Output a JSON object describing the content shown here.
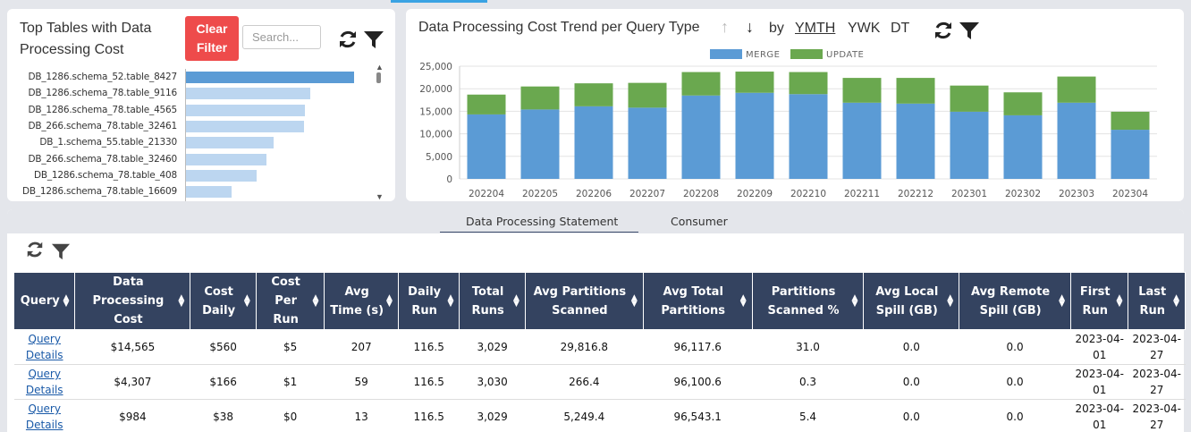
{
  "top_tables": {
    "title": "Top Tables with Data Processing Cost",
    "clear_filter_label": "Clear Filter",
    "search_placeholder": "Search...",
    "rows": [
      {
        "label": "DB_1286.schema_52.table_8427",
        "value": 100,
        "selected": true
      },
      {
        "label": "DB_1286.schema_78.table_9116",
        "value": 74
      },
      {
        "label": "DB_1286.schema_78.table_4565",
        "value": 71
      },
      {
        "label": "DB_266.schema_78.table_32461",
        "value": 70
      },
      {
        "label": "DB_1.schema_55.table_21330",
        "value": 52
      },
      {
        "label": "DB_266.schema_78.table_32460",
        "value": 48
      },
      {
        "label": "DB_1286.schema_78.table_408",
        "value": 42
      },
      {
        "label": "DB_1286.schema_78.table_16609",
        "value": 27
      }
    ]
  },
  "trend": {
    "title": "Data Processing Cost Trend per Query Type",
    "by_label": "by",
    "granularity": [
      "YMTH",
      "YWK",
      "DT"
    ],
    "active_granularity": "YMTH"
  },
  "chart_data": {
    "type": "bar",
    "stacked": true,
    "categories": [
      "202204",
      "202205",
      "202206",
      "202207",
      "202208",
      "202209",
      "202210",
      "202211",
      "202212",
      "202301",
      "202302",
      "202303",
      "202304"
    ],
    "series": [
      {
        "name": "MERGE",
        "color": "#5b9bd5",
        "values": [
          14300,
          15400,
          16100,
          15800,
          18500,
          19100,
          18800,
          16900,
          16700,
          14900,
          14100,
          16900,
          10900
        ]
      },
      {
        "name": "UPDATE",
        "color": "#6aa84f",
        "values": [
          4400,
          5100,
          5100,
          5500,
          5200,
          4700,
          4900,
          5500,
          5700,
          5800,
          5100,
          5800,
          4000
        ]
      }
    ],
    "ylim": [
      0,
      25000
    ],
    "yticks": [
      "0",
      "5,000",
      "10,000",
      "15,000",
      "20,000",
      "25,000"
    ],
    "legend_position": "top-center",
    "grid": true
  },
  "detail": {
    "tabs": [
      "Data Processing Statement",
      "Consumer"
    ],
    "active_tab": "Data Processing Statement",
    "columns": [
      "Query",
      "Data Processing Cost",
      "Cost Daily",
      "Cost Per Run",
      "Avg Time (s)",
      "Daily Run",
      "Total Runs",
      "Avg Partitions Scanned",
      "Avg Total Partitions",
      "Partitions Scanned %",
      "Avg Local Spill (GB)",
      "Avg Remote Spill (GB)",
      "First Run",
      "Last Run"
    ],
    "rows": [
      [
        "Query Details",
        "$14,565",
        "$560",
        "$5",
        "207",
        "116.5",
        "3,029",
        "29,816.8",
        "96,117.6",
        "31.0",
        "0.0",
        "0.0",
        "2023-04-01",
        "2023-04-27"
      ],
      [
        "Query Details",
        "$4,307",
        "$166",
        "$1",
        "59",
        "116.5",
        "3,030",
        "266.4",
        "96,100.6",
        "0.3",
        "0.0",
        "0.0",
        "2023-04-01",
        "2023-04-27"
      ],
      [
        "Query Details",
        "$984",
        "$38",
        "$0",
        "13",
        "116.5",
        "3,029",
        "5,249.4",
        "96,543.1",
        "5.4",
        "0.0",
        "0.0",
        "2023-04-01",
        "2023-04-27"
      ]
    ]
  }
}
